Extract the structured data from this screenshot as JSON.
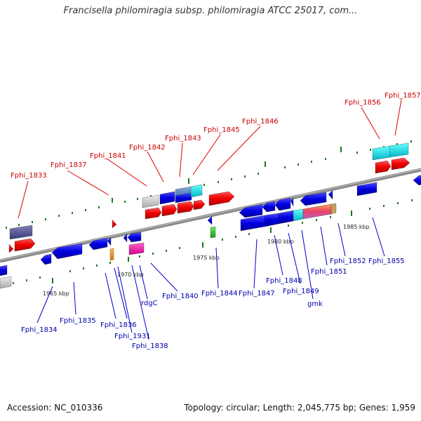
{
  "title": "Francisella philomiragia subsp. philomiragia ATCC 25017, com...",
  "footer": {
    "accession": "Accession: NC_010336",
    "stats": "Topology: circular; Length: 2,045,775 bp; Genes: 1,959"
  },
  "colors": {
    "forward_label": "#cc0000",
    "reverse_label": "#0000aa",
    "backbone": "#888888",
    "tick": "#1a7a1a"
  },
  "scale_labels": [
    "1965 kbp",
    "1970 kbp",
    "1975 kbp",
    "1980 kbp",
    "1985 kbp"
  ],
  "forward_gene_labels": [
    "Fphi_1833",
    "Fphi_1837",
    "Fphi_1841",
    "Fphi_1842",
    "Fphi_1843",
    "Fphi_1845",
    "Fphi_1846",
    "Fphi_1856",
    "Fphi_1857"
  ],
  "reverse_gene_labels": [
    "Fphi_1834",
    "Fphi_1835",
    "Fphi_1836",
    "Fphi_1931",
    "Fphi_1838",
    "rdgC",
    "Fphi_1840",
    "Fphi_1844",
    "Fphi_1847",
    "Fphi_1848",
    "Fphi_1849",
    "gmk",
    "Fphi_1851",
    "Fphi_1852",
    "Fphi_1855"
  ]
}
